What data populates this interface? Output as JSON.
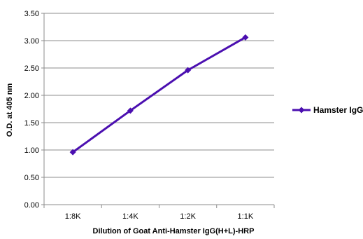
{
  "chart_data": {
    "type": "line",
    "categories": [
      "1:8K",
      "1:4K",
      "1:2K",
      "1:1K"
    ],
    "series": [
      {
        "name": "Hamster IgG",
        "values": [
          0.96,
          1.72,
          2.46,
          3.06
        ],
        "color": "#4b0fb0"
      }
    ],
    "xlabel": "Dilution of Goat Anti-Hamster IgG(H+L)-HRP",
    "ylabel": "O.D. at 405 nm",
    "ylim": [
      0,
      3.5
    ],
    "yticks": [
      "0.00",
      "0.50",
      "1.00",
      "1.50",
      "2.00",
      "2.50",
      "3.00",
      "3.50"
    ],
    "grid": true,
    "legend_position": "right",
    "marker": "diamond"
  }
}
